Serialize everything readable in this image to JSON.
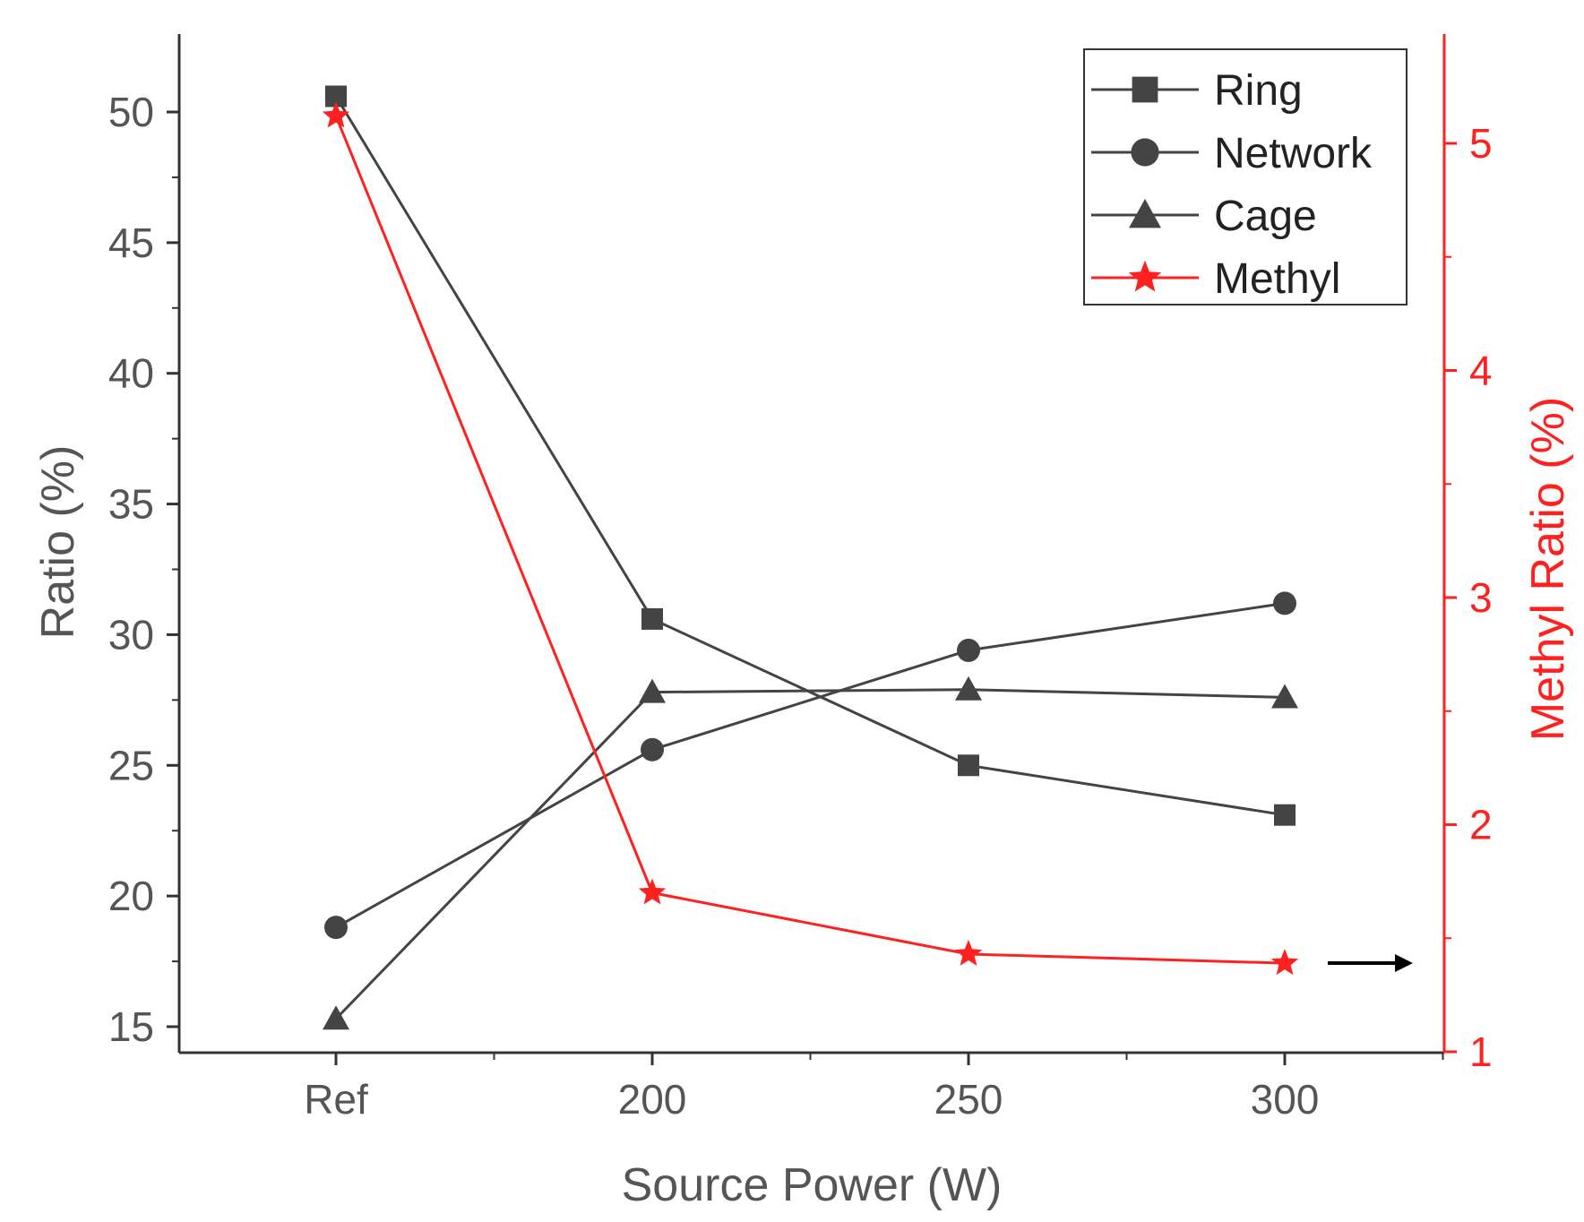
{
  "chart_data": {
    "type": "line",
    "categories": [
      "Ref",
      "200",
      "250",
      "300"
    ],
    "xlabel": "Source Power (W)",
    "ylabel": "Ratio (%)",
    "ylabel_right": "Methyl Ratio (%)",
    "ylim": [
      14,
      53
    ],
    "ylim_right": [
      1,
      5.5
    ],
    "yticks": [
      "15",
      "20",
      "25",
      "30",
      "35",
      "40",
      "45",
      "50"
    ],
    "yticks_right": [
      "1",
      "2",
      "3",
      "4",
      "5"
    ],
    "series": [
      {
        "name": "Ring",
        "axis": "left",
        "marker": "square",
        "color": "#444444",
        "values": [
          50.6,
          30.6,
          25.0,
          23.1
        ]
      },
      {
        "name": "Network",
        "axis": "left",
        "marker": "circle",
        "color": "#444444",
        "values": [
          18.8,
          25.6,
          29.4,
          31.2
        ]
      },
      {
        "name": "Cage",
        "axis": "left",
        "marker": "triangle",
        "color": "#444444",
        "values": [
          15.3,
          27.8,
          27.9,
          27.6
        ]
      },
      {
        "name": "Methyl",
        "axis": "right",
        "marker": "star",
        "color": "#ff2020",
        "values": [
          5.12,
          1.7,
          1.43,
          1.39
        ]
      }
    ],
    "legend_position": "top-right",
    "grid": false
  }
}
